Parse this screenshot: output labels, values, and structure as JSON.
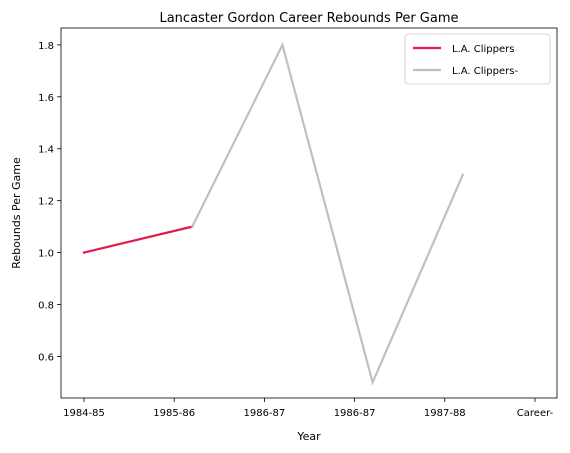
{
  "chart_data": {
    "type": "line",
    "title": "Lancaster Gordon Career Rebounds Per Game",
    "xlabel": "Year",
    "ylabel": "Rebounds Per Game",
    "categories": [
      "1984-85",
      "1985-86",
      "1986-87",
      "1986-87",
      "1987-88",
      "Career-"
    ],
    "ylim": [
      0.44,
      1.865
    ],
    "yticks": [
      0.6,
      0.8,
      1.0,
      1.2,
      1.4,
      1.6,
      1.8
    ],
    "yticklabels": [
      "0.6",
      "0.8",
      "1.0",
      "1.2",
      "1.4",
      "1.6",
      "1.8"
    ],
    "grid": false,
    "legend_position": "top-right",
    "series": [
      {
        "name": "L.A. Clippers",
        "color": "#e31a4c",
        "points": [
          [
            0,
            1.0
          ],
          [
            1.2,
            1.1
          ]
        ]
      },
      {
        "name": "L.A. Clippers-",
        "color": "#c0c0c0",
        "points": [
          [
            1.2,
            1.1
          ],
          [
            2.2,
            1.8
          ],
          [
            3.2,
            0.5
          ],
          [
            4.2,
            1.3
          ]
        ]
      }
    ]
  }
}
